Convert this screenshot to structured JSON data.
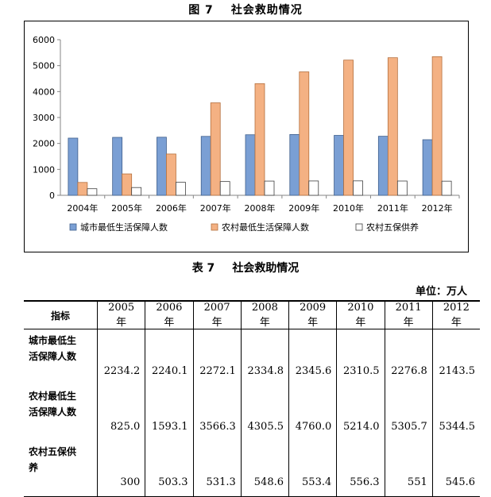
{
  "figure": {
    "number": "图 7",
    "title": "社会救助情况"
  },
  "table": {
    "number": "表 7",
    "title": "社会救助情况",
    "unit": "单位：万人",
    "header_label": "指标",
    "years": [
      "2005 年",
      "2006 年",
      "2007 年",
      "2008 年",
      "2009 年",
      "2010 年",
      "2011 年",
      "2012 年"
    ],
    "rows": [
      {
        "label_line1": "城市最低生",
        "label_line2": "活保障人数",
        "values": [
          "2234.2",
          "2240.1",
          "2272.1",
          "2334.8",
          "2345.6",
          "2310.5",
          "2276.8",
          "2143.5"
        ]
      },
      {
        "label_line1": "农村最低生",
        "label_line2": "活保障人数",
        "values": [
          "825.0",
          "1593.1",
          "3566.3",
          "4305.5",
          "4760.0",
          "5214.0",
          "5305.7",
          "5344.5"
        ]
      },
      {
        "label_line1": "农村五保供",
        "label_line2": "养",
        "values": [
          "300",
          "503.3",
          "531.3",
          "548.6",
          "553.4",
          "556.3",
          "551",
          "545.6"
        ]
      }
    ]
  },
  "chart_data": {
    "type": "bar",
    "categories": [
      "2004年",
      "2005年",
      "2006年",
      "2007年",
      "2008年",
      "2009年",
      "2010年",
      "2011年",
      "2012年"
    ],
    "ylim": [
      0,
      6000
    ],
    "yticks": [
      0,
      1000,
      2000,
      3000,
      4000,
      5000,
      6000
    ],
    "grid": false,
    "legend_position": "bottom",
    "series": [
      {
        "name": "城市最低生活保障人数",
        "color": "#7a9fd4",
        "stroke": "#3f5f8c",
        "values": [
          2205,
          2234.2,
          2240.1,
          2272.1,
          2334.8,
          2345.6,
          2310.5,
          2276.8,
          2143.5
        ]
      },
      {
        "name": "农村最低生活保障人数",
        "color": "#f4b183",
        "stroke": "#b5703e",
        "values": [
          496,
          825.0,
          1593.1,
          3566.3,
          4305.5,
          4760.0,
          5214.0,
          5305.7,
          5344.5
        ]
      },
      {
        "name": "农村五保供养",
        "color": "#ffffff",
        "stroke": "#404040",
        "values": [
          254,
          300,
          503.3,
          531.3,
          548.6,
          553.4,
          556.3,
          551,
          545.6
        ]
      }
    ]
  }
}
